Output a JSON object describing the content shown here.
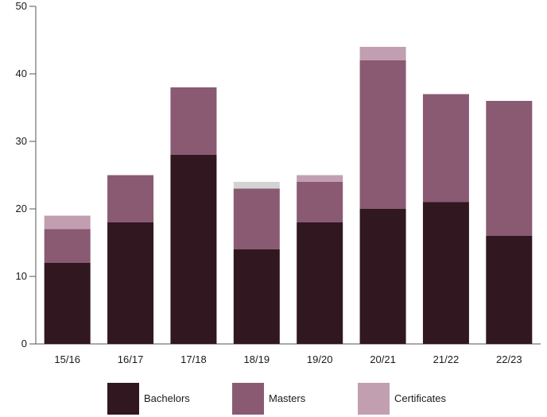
{
  "chart_data": {
    "type": "bar",
    "stacked": true,
    "categories": [
      "15/16",
      "16/17",
      "17/18",
      "18/19",
      "19/20",
      "20/21",
      "21/22",
      "22/23"
    ],
    "series": [
      {
        "name": "Bachelors",
        "values": [
          12,
          18,
          28,
          14,
          18,
          20,
          21,
          16
        ],
        "color": "#311720"
      },
      {
        "name": "Masters",
        "values": [
          5,
          7,
          10,
          9,
          6,
          22,
          16,
          20
        ],
        "color": "#8a5a73"
      },
      {
        "name": "Certificates",
        "values": [
          2,
          0,
          0,
          1,
          1,
          2,
          0,
          0
        ],
        "color": "#c19fb0"
      }
    ],
    "other_segment_color": "#d3d3d3",
    "title": "",
    "xlabel": "",
    "ylabel": "",
    "ylim": [
      0,
      50
    ],
    "yticks": [
      "0",
      "10",
      "20",
      "30",
      "40",
      "50"
    ],
    "grid": false,
    "legend_position": "bottom"
  }
}
